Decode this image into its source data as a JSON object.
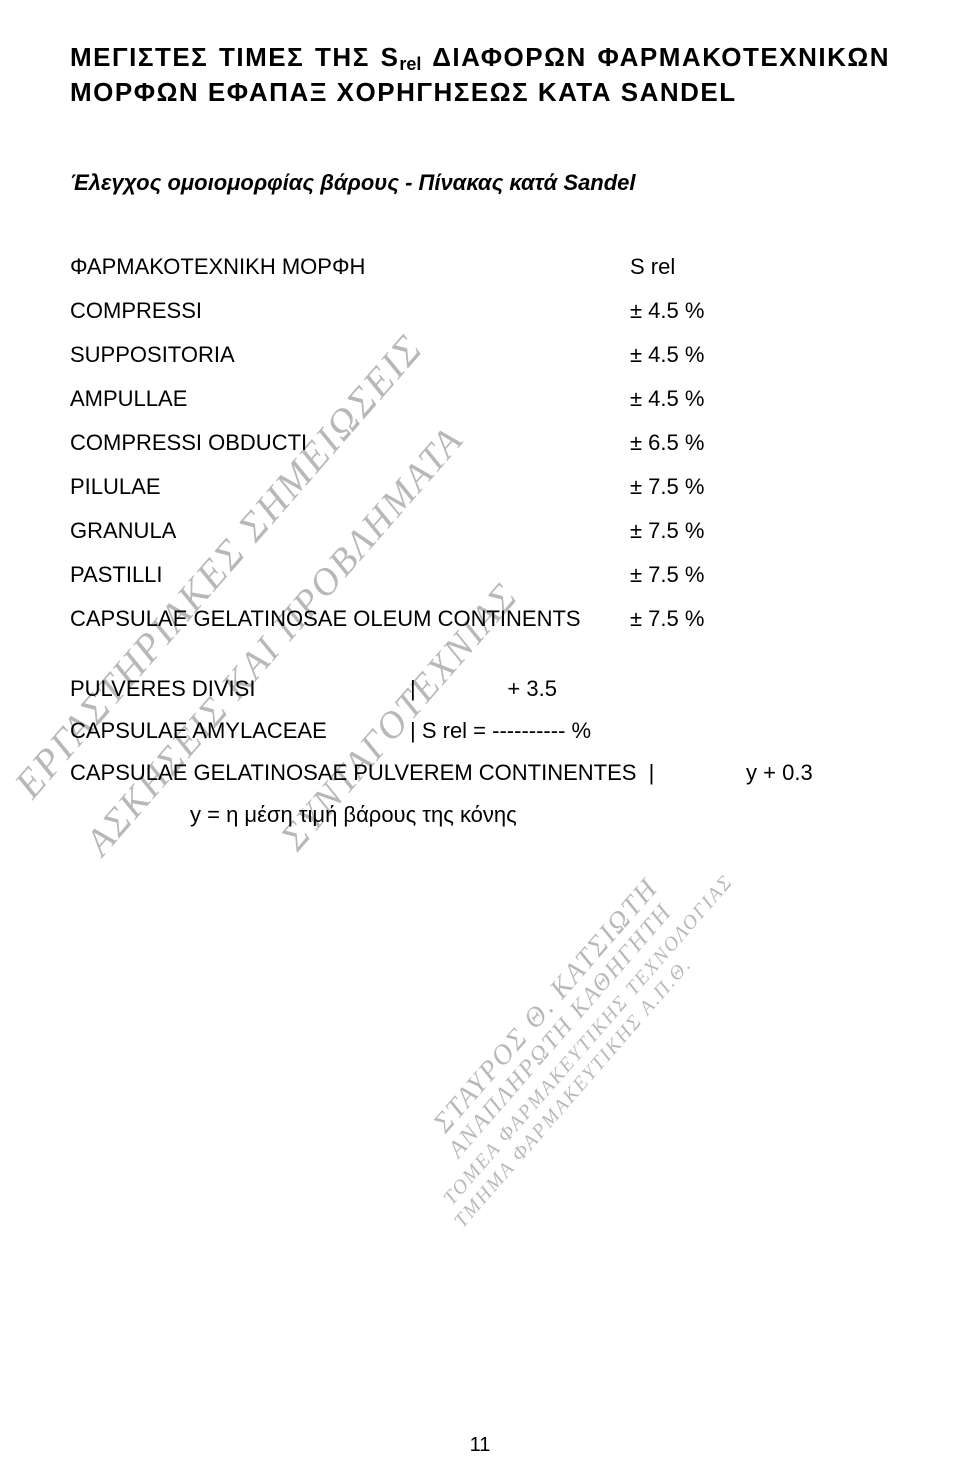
{
  "title": {
    "line1_parts": [
      "ΜΕΓΙΣΤΕΣ",
      "ΤΙΜΕΣ",
      "ΤΗΣ",
      "S",
      "rel",
      "ΔΙΑΦΟΡΩΝ",
      "ΦΑΡΜΑΚΟΤΕΧΝΙΚΩΝ"
    ],
    "line2": "ΜΟΡΦΩΝ ΕΦΑΠΑΞ ΧΟΡΗΓΗΣΕΩΣ ΚΑΤΑ SANDEL"
  },
  "subtitle": "Έλεγχος ομοιομορφίας βάρους - Πίνακας κατά Sandel",
  "table_header": {
    "label": "ΦΑΡΜΑΚΟΤΕΧΝΙΚΗ ΜΟΡΦΗ",
    "value": "S rel"
  },
  "rows": [
    {
      "label": "COMPRESSI",
      "value": "± 4.5 %"
    },
    {
      "label": "SUPPOSITORIA",
      "value": "± 4.5 %"
    },
    {
      "label": "AMPULLAE",
      "value": "± 4.5 %"
    },
    {
      "label": "COMPRESSI OBDUCTI",
      "value": "± 6.5 %"
    },
    {
      "label": "PILULAE",
      "value": "± 7.5 %"
    },
    {
      "label": "GRANULA",
      "value": "± 7.5 %"
    },
    {
      "label": "PASTILLI",
      "value": "± 7.5 %"
    },
    {
      "label": "CAPSULAE GELATINOSAE OLEUM CONTINENTS",
      "value": "± 7.5 %"
    }
  ],
  "group2": {
    "line1_col1": "PULVERES DIVISI",
    "line1_col2": "|               + 3.5",
    "line2_col1": "CAPSULAE AMYLACEAE",
    "line2_col2": "| S rel = ---------- %",
    "line3": "CAPSULAE GELATINOSAE PULVEREM CONTINENTES  |               y + 0.3"
  },
  "footnote": "y = η μέση τιμή βάρους της κόνης",
  "watermarks": {
    "w1": "ΕΡΓΑΣΤΗΡΙΑΚΕΣ ΣΗΜΕΙΩΣΕΙΣ",
    "w2": "ΑΣΚΗΣΕΙΣ ΚΑΙ ΠΡΟΒΛΗΜΑΤΑ",
    "w3": "ΣΥΝΤΑΓΟΤΕΧΝΙΑΣ",
    "stack": [
      "ΣΤΑΥΡΟΣ Θ. ΚΑΤΣΙΩΤΗ",
      "ΑΝΑΠΛΗΡΩΤΗ ΚΑΘΗΓΗΤΗ",
      "ΤΟΜΕΑ ΦΑΡΜΑΚΕΥΤΙΚΗΣ ΤΕΧΝΟΛΟΓΙΑΣ",
      "ΤΜΗΜΑ ΦΑΡΜΑΚΕΥΤΙΚΗΣ Α.Π.Θ."
    ]
  },
  "page_number": "11"
}
